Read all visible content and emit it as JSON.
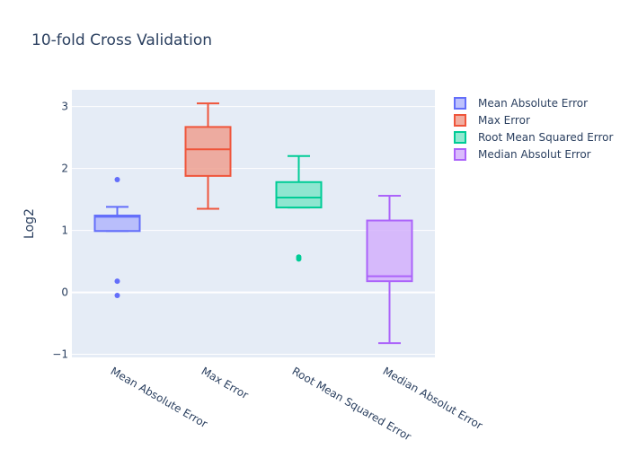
{
  "chart_data": {
    "type": "box",
    "title": "10-fold Cross Validation",
    "xlabel": "",
    "ylabel": "Log2",
    "ylim": [
      -1.05,
      3.27
    ],
    "yticks": [
      -1,
      0,
      1,
      2,
      3
    ],
    "grid": true,
    "legend_position": "right",
    "categories": [
      "Mean Absolute Error",
      "Max Error",
      "Root Mean Squared Error",
      "Median Absolut Error"
    ],
    "series": [
      {
        "name": "Mean Absolute Error",
        "color": "#636efa",
        "fill": "#b1b6fc",
        "q1": 0.99,
        "median": 1.22,
        "q3": 1.24,
        "lower_whisker": 0.99,
        "upper_whisker": 1.38,
        "outliers": [
          1.82,
          0.18,
          -0.05
        ]
      },
      {
        "name": "Max Error",
        "color": "#ef553b",
        "fill": "#eea090",
        "q1": 1.88,
        "median": 2.31,
        "q3": 2.67,
        "lower_whisker": 1.35,
        "upper_whisker": 3.05,
        "outliers": []
      },
      {
        "name": "Root Mean Squared Error",
        "color": "#00cc96",
        "fill": "#7fe5c9",
        "q1": 1.37,
        "median": 1.53,
        "q3": 1.78,
        "lower_whisker": 1.37,
        "upper_whisker": 2.2,
        "outliers": [
          0.57,
          0.54
        ]
      },
      {
        "name": "Median Absolut Error",
        "color": "#ab63fa",
        "fill": "#d4b0fc",
        "q1": 0.18,
        "median": 0.26,
        "q3": 1.16,
        "lower_whisker": -0.82,
        "upper_whisker": 1.56,
        "outliers": []
      }
    ]
  },
  "colors": {
    "plot_background": "#e5ecf6",
    "gridline": "#ffffff",
    "text": "#2a3f5f"
  }
}
